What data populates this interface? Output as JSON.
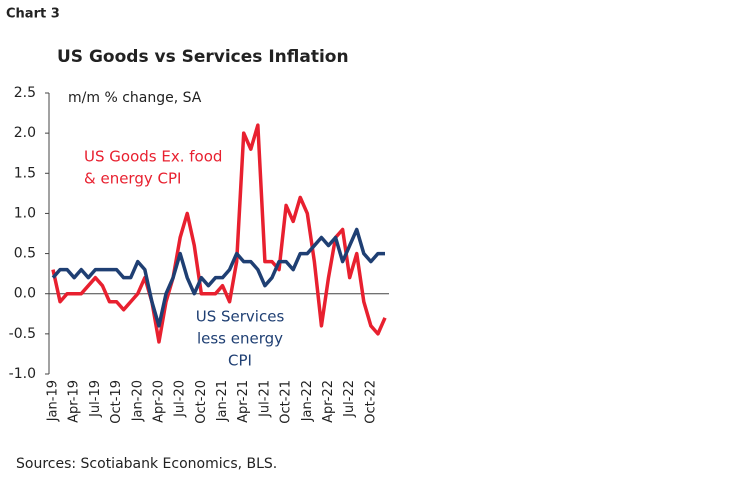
{
  "chart_data": {
    "type": "line",
    "label": "Chart 3",
    "title": "US Goods vs Services Inflation",
    "y_label": "m/m % change, SA",
    "source": "Sources: Scotiabank Economics, BLS.",
    "categories": [
      "Jan-19",
      null,
      null,
      "Apr-19",
      null,
      null,
      "Jul-19",
      null,
      null,
      "Oct-19",
      null,
      null,
      "Jan-20",
      null,
      null,
      "Apr-20",
      null,
      null,
      "Jul-20",
      null,
      null,
      "Oct-20",
      null,
      null,
      "Jan-21",
      null,
      null,
      "Apr-21",
      null,
      null,
      "Jul-21",
      null,
      null,
      "Oct-21",
      null,
      null,
      "Jan-22",
      null,
      null,
      "Apr-22",
      null,
      null,
      "Jul-22",
      null,
      null,
      "Oct-22",
      null,
      null
    ],
    "series": [
      {
        "name": "US Goods Ex. food & energy CPI",
        "color": "#e8202f",
        "values": [
          0.3,
          -0.1,
          0.0,
          0.0,
          0.0,
          0.1,
          0.2,
          0.1,
          -0.1,
          -0.1,
          -0.2,
          -0.1,
          0.0,
          0.2,
          -0.1,
          -0.6,
          -0.1,
          0.2,
          0.7,
          1.0,
          0.6,
          0.0,
          0.0,
          0.0,
          0.1,
          -0.1,
          0.4,
          2.0,
          1.8,
          2.1,
          0.4,
          0.4,
          0.3,
          1.1,
          0.9,
          1.2,
          1.0,
          0.4,
          -0.4,
          0.2,
          0.7,
          0.8,
          0.2,
          0.5,
          -0.1,
          -0.4,
          -0.5,
          -0.3
        ]
      },
      {
        "name": "US Services less energy CPI",
        "color": "#1f3f73",
        "values": [
          0.2,
          0.3,
          0.3,
          0.2,
          0.3,
          0.2,
          0.3,
          0.3,
          0.3,
          0.3,
          0.2,
          0.2,
          0.4,
          0.3,
          -0.1,
          -0.4,
          0.0,
          0.2,
          0.5,
          0.2,
          0.0,
          0.2,
          0.1,
          0.2,
          0.2,
          0.3,
          0.5,
          0.4,
          0.4,
          0.3,
          0.1,
          0.2,
          0.4,
          0.4,
          0.3,
          0.5,
          0.5,
          0.6,
          0.7,
          0.6,
          0.7,
          0.4,
          0.6,
          0.8,
          0.5,
          0.4,
          0.5,
          0.5
        ]
      }
    ],
    "annotations": [
      {
        "lines": [
          "US Goods Ex. food",
          "& energy CPI"
        ],
        "color": "#e8202f"
      },
      {
        "lines": [
          "US Services",
          "less energy",
          "CPI"
        ],
        "color": "#1f3f73"
      }
    ],
    "ylim": [
      -1.0,
      2.5
    ],
    "yticks": [
      {
        "value": -1.0,
        "label": "-1.0"
      },
      {
        "value": -0.5,
        "label": "-0.5"
      },
      {
        "value": 0.0,
        "label": "0.0"
      },
      {
        "value": 0.5,
        "label": "0.5"
      },
      {
        "value": 1.0,
        "label": "1.0"
      },
      {
        "value": 1.5,
        "label": "1.5"
      },
      {
        "value": 2.0,
        "label": "2.0"
      },
      {
        "value": 2.5,
        "label": "2.5"
      }
    ],
    "zero_line": true
  }
}
